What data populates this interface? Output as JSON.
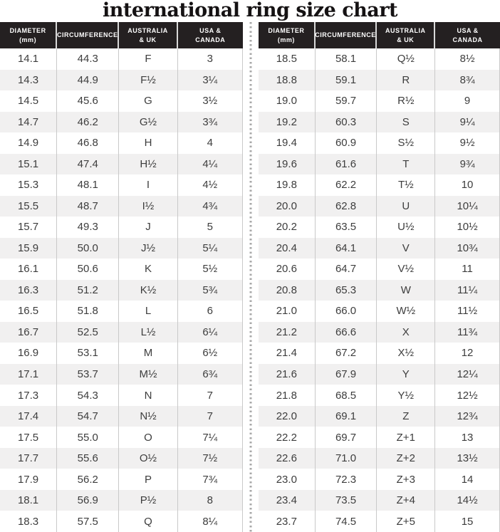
{
  "chart_data": {
    "type": "table",
    "title": "international ring size chart",
    "column_headers": [
      [
        "DIAMETER",
        "(mm)"
      ],
      [
        "CIRCUMFERENCE"
      ],
      [
        "AUSTRALIA",
        "& UK"
      ],
      [
        "USA &",
        "CANADA"
      ]
    ],
    "tables": [
      {
        "rows": [
          [
            "14.1",
            "44.3",
            "F",
            "3"
          ],
          [
            "14.3",
            "44.9",
            "F½",
            "3¼"
          ],
          [
            "14.5",
            "45.6",
            "G",
            "3½"
          ],
          [
            "14.7",
            "46.2",
            "G½",
            "3¾"
          ],
          [
            "14.9",
            "46.8",
            "H",
            "4"
          ],
          [
            "15.1",
            "47.4",
            "H½",
            "4¼"
          ],
          [
            "15.3",
            "48.1",
            "I",
            "4½"
          ],
          [
            "15.5",
            "48.7",
            "I½",
            "4¾"
          ],
          [
            "15.7",
            "49.3",
            "J",
            "5"
          ],
          [
            "15.9",
            "50.0",
            "J½",
            "5¼"
          ],
          [
            "16.1",
            "50.6",
            "K",
            "5½"
          ],
          [
            "16.3",
            "51.2",
            "K½",
            "5¾"
          ],
          [
            "16.5",
            "51.8",
            "L",
            "6"
          ],
          [
            "16.7",
            "52.5",
            "L½",
            "6¼"
          ],
          [
            "16.9",
            "53.1",
            "M",
            "6½"
          ],
          [
            "17.1",
            "53.7",
            "M½",
            "6¾"
          ],
          [
            "17.3",
            "54.3",
            "N",
            "7"
          ],
          [
            "17.4",
            "54.7",
            "N½",
            "7"
          ],
          [
            "17.5",
            "55.0",
            "O",
            "7¼"
          ],
          [
            "17.7",
            "55.6",
            "O½",
            "7½"
          ],
          [
            "17.9",
            "56.2",
            "P",
            "7¾"
          ],
          [
            "18.1",
            "56.9",
            "P½",
            "8"
          ],
          [
            "18.3",
            "57.5",
            "Q",
            "8¼"
          ]
        ]
      },
      {
        "rows": [
          [
            "18.5",
            "58.1",
            "Q½",
            "8½"
          ],
          [
            "18.8",
            "59.1",
            "R",
            "8¾"
          ],
          [
            "19.0",
            "59.7",
            "R½",
            "9"
          ],
          [
            "19.2",
            "60.3",
            "S",
            "9¼"
          ],
          [
            "19.4",
            "60.9",
            "S½",
            "9½"
          ],
          [
            "19.6",
            "61.6",
            "T",
            "9¾"
          ],
          [
            "19.8",
            "62.2",
            "T½",
            "10"
          ],
          [
            "20.0",
            "62.8",
            "U",
            "10¼"
          ],
          [
            "20.2",
            "63.5",
            "U½",
            "10½"
          ],
          [
            "20.4",
            "64.1",
            "V",
            "10¾"
          ],
          [
            "20.6",
            "64.7",
            "V½",
            "11"
          ],
          [
            "20.8",
            "65.3",
            "W",
            "11¼"
          ],
          [
            "21.0",
            "66.0",
            "W½",
            "11½"
          ],
          [
            "21.2",
            "66.6",
            "X",
            "11¾"
          ],
          [
            "21.4",
            "67.2",
            "X½",
            "12"
          ],
          [
            "21.6",
            "67.9",
            "Y",
            "12¼"
          ],
          [
            "21.8",
            "68.5",
            "Y½",
            "12½"
          ],
          [
            "22.0",
            "69.1",
            "Z",
            "12¾"
          ],
          [
            "22.2",
            "69.7",
            "Z+1",
            "13"
          ],
          [
            "22.6",
            "71.0",
            "Z+2",
            "13½"
          ],
          [
            "23.0",
            "72.3",
            "Z+3",
            "14"
          ],
          [
            "23.4",
            "73.5",
            "Z+4",
            "14½"
          ],
          [
            "23.7",
            "74.5",
            "Z+5",
            "15"
          ]
        ]
      }
    ]
  },
  "colors": {
    "header_bg": "#242021",
    "header_text": "#ffffff",
    "row_bg": "#ffffff",
    "row_alt_bg": "#f1f0f0",
    "cell_text": "#3d3d3d",
    "grid_line": "#c9c9c9",
    "divider_dots": "#a8a8a8",
    "title_text": "#151213"
  }
}
